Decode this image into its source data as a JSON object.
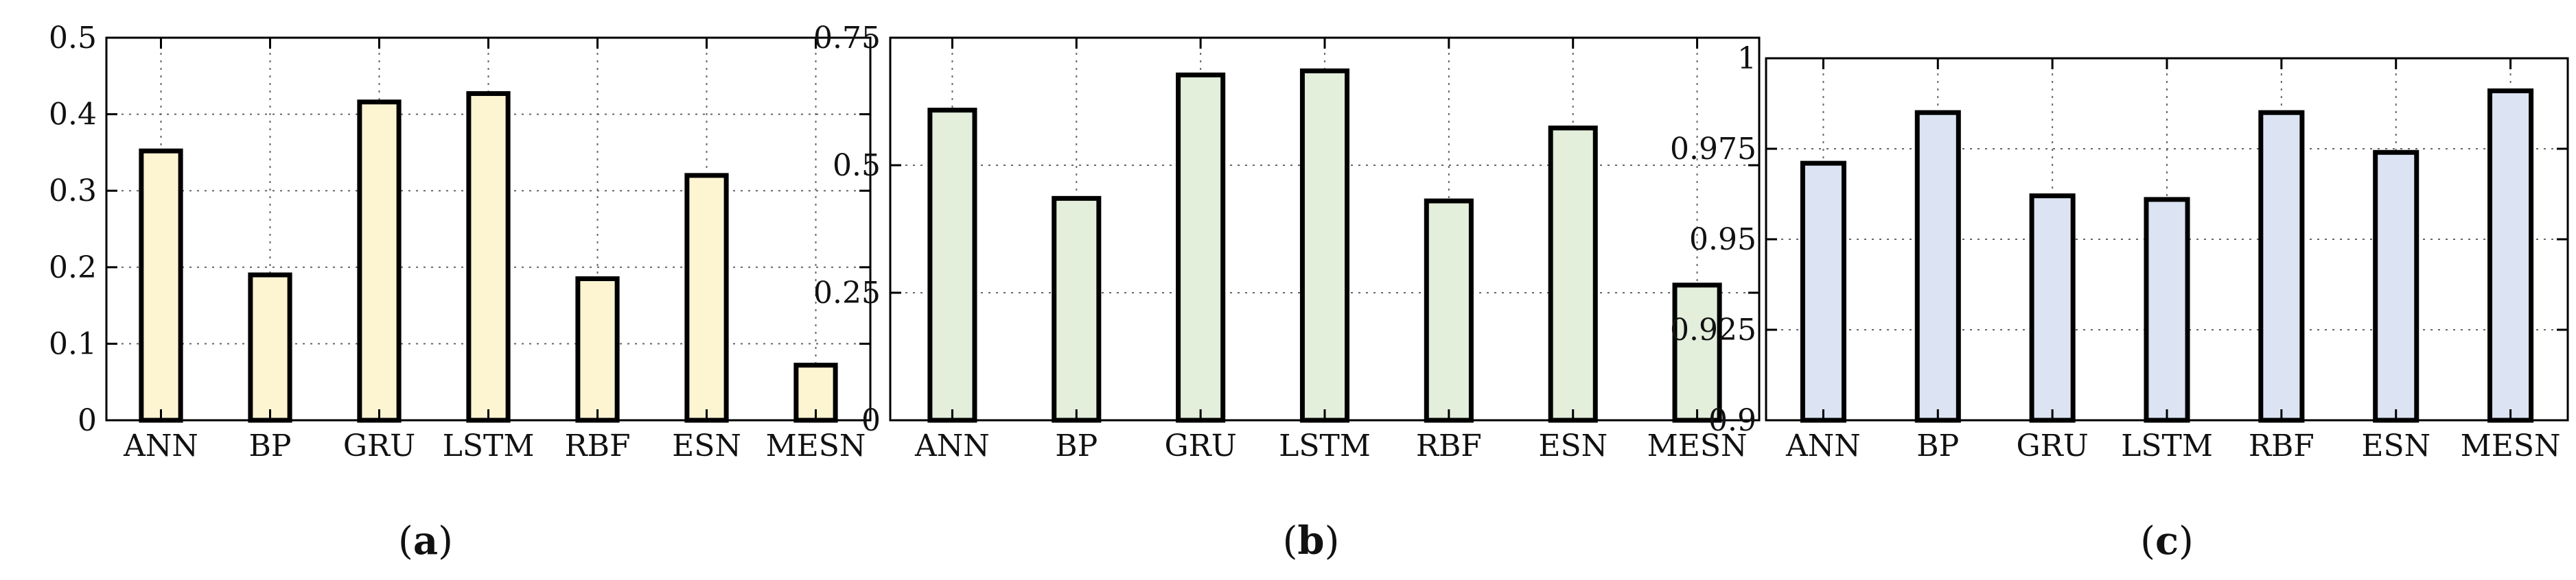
{
  "chart_data": [
    {
      "type": "bar",
      "caption": {
        "open": "(",
        "letter": "a",
        "close": ")"
      },
      "categories": [
        "ANN",
        "BP",
        "GRU",
        "LSTM",
        "RBF",
        "ESN",
        "MESN"
      ],
      "values": [
        0.352,
        0.19,
        0.416,
        0.427,
        0.185,
        0.32,
        0.072
      ],
      "ylim": [
        0,
        0.5
      ],
      "yticks": [
        0,
        0.1,
        0.2,
        0.3,
        0.4,
        0.5
      ],
      "ytick_labels": [
        "0",
        "0.1",
        "0.2",
        "0.3",
        "0.4",
        "0.5"
      ],
      "y_axis_side": "left",
      "fill_color": "#FDF4D2",
      "grid": true
    },
    {
      "type": "bar",
      "caption": {
        "open": "(",
        "letter": "b",
        "close": ")"
      },
      "categories": [
        "ANN",
        "BP",
        "GRU",
        "LSTM",
        "RBF",
        "ESN",
        "MESN"
      ],
      "values": [
        0.608,
        0.435,
        0.677,
        0.685,
        0.43,
        0.573,
        0.265
      ],
      "ylim": [
        0,
        0.75
      ],
      "yticks": [
        0,
        0.25,
        0.5,
        0.75
      ],
      "ytick_labels": [
        "0",
        "0.25",
        "0.5",
        "0.75"
      ],
      "y_axis_side": "left",
      "fill_color": "#E3EEDB",
      "grid": true
    },
    {
      "type": "bar",
      "caption": {
        "open": "(",
        "letter": "c",
        "close": ")"
      },
      "categories": [
        "ANN",
        "BP",
        "GRU",
        "LSTM",
        "RBF",
        "ESN",
        "MESN"
      ],
      "values": [
        0.971,
        0.985,
        0.962,
        0.961,
        0.985,
        0.974,
        0.991
      ],
      "ylim": [
        0.9,
        1
      ],
      "yticks": [
        0.9,
        0.925,
        0.95,
        0.975,
        1
      ],
      "ytick_labels": [
        "0.9",
        "0.925",
        "0.95",
        "0.975",
        "1"
      ],
      "y_axis_side": "left",
      "fill_color": "#DCE4F3",
      "grid": true
    }
  ]
}
